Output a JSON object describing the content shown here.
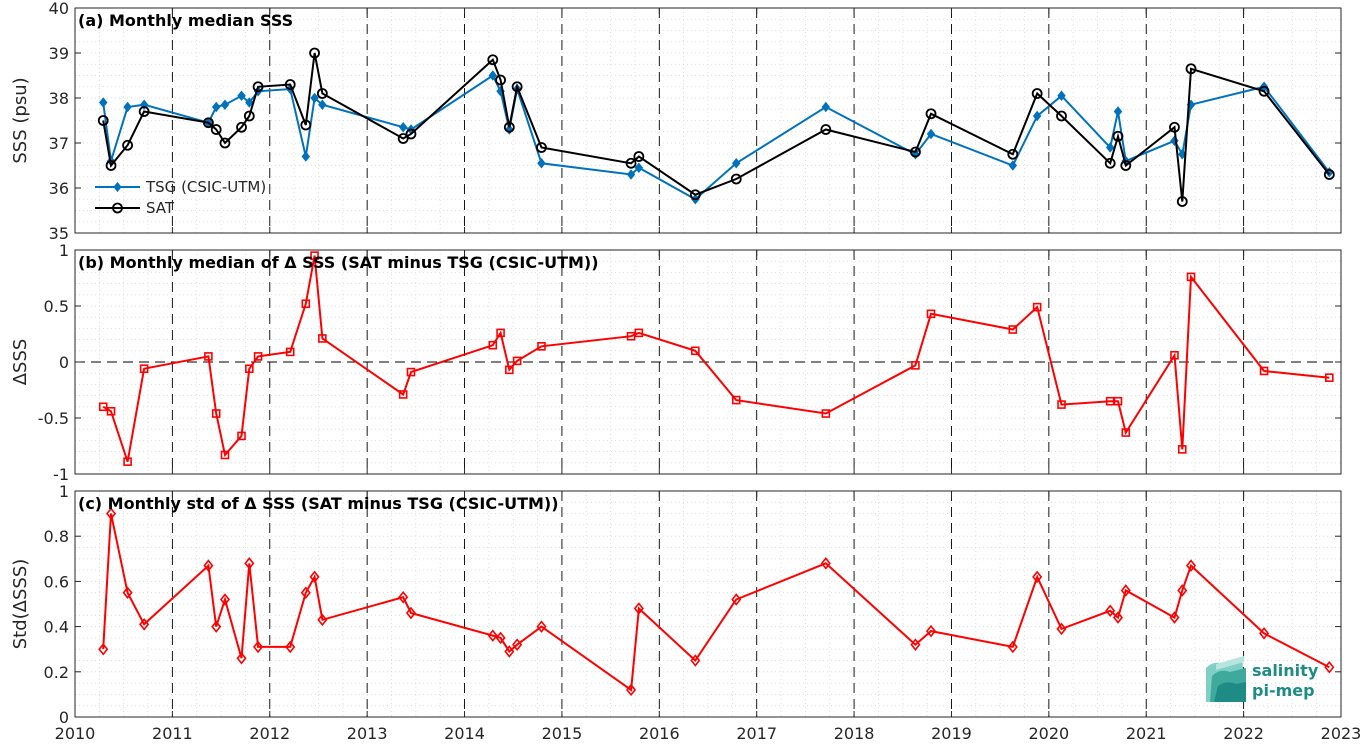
{
  "chart_data": [
    {
      "panel": "a",
      "type": "line",
      "title": "(a) Monthly median SSS",
      "ylabel": "SSS (psu)",
      "xlabel": "",
      "xlim": [
        2010,
        2023
      ],
      "ylim": [
        35,
        40
      ],
      "x_ticks": [
        "2010",
        "2011",
        "2012",
        "2013",
        "2014",
        "2015",
        "2016",
        "2017",
        "2018",
        "2019",
        "2020",
        "2021",
        "2022",
        "2023"
      ],
      "y_ticks": [
        "35",
        "36",
        "37",
        "38",
        "39",
        "40"
      ],
      "grid": "minor dotted + dashed yearly lines",
      "legend_position": "lower-left",
      "series": [
        {
          "name": "TSG (CSIC-UTM)",
          "color": "#0072bd",
          "marker": "diamond",
          "x": [
            2010.29,
            2010.37,
            2010.54,
            2010.71,
            2011.37,
            2011.45,
            2011.54,
            2011.71,
            2011.79,
            2011.88,
            2012.21,
            2012.37,
            2012.46,
            2012.54,
            2013.37,
            2013.45,
            2014.29,
            2014.37,
            2014.46,
            2014.54,
            2014.79,
            2015.71,
            2015.79,
            2016.37,
            2016.79,
            2017.71,
            2018.63,
            2018.79,
            2019.63,
            2019.88,
            2020.13,
            2020.63,
            2020.71,
            2020.79,
            2021.29,
            2021.37,
            2021.46,
            2022.21,
            2022.88
          ],
          "y": [
            37.9,
            36.6,
            37.8,
            37.85,
            37.45,
            37.8,
            37.85,
            38.05,
            37.9,
            38.15,
            38.2,
            36.7,
            38.0,
            37.85,
            37.35,
            37.3,
            38.5,
            38.15,
            37.3,
            38.2,
            36.55,
            36.3,
            36.45,
            35.75,
            36.55,
            37.8,
            36.75,
            37.2,
            36.5,
            37.6,
            38.05,
            36.9,
            37.7,
            36.6,
            37.05,
            36.75,
            37.85,
            38.25,
            36.35
          ]
        },
        {
          "name": "SAT",
          "color": "#000000",
          "marker": "circle",
          "x": [
            2010.29,
            2010.37,
            2010.54,
            2010.71,
            2011.37,
            2011.45,
            2011.54,
            2011.71,
            2011.79,
            2011.88,
            2012.21,
            2012.37,
            2012.46,
            2012.54,
            2013.37,
            2013.45,
            2014.29,
            2014.37,
            2014.46,
            2014.54,
            2014.79,
            2015.71,
            2015.79,
            2016.37,
            2016.79,
            2017.71,
            2018.63,
            2018.79,
            2019.63,
            2019.88,
            2020.13,
            2020.63,
            2020.71,
            2020.79,
            2021.29,
            2021.37,
            2021.46,
            2022.21,
            2022.88
          ],
          "y": [
            37.5,
            36.5,
            36.95,
            37.7,
            37.45,
            37.3,
            37.0,
            37.35,
            37.6,
            38.25,
            38.3,
            37.4,
            39.0,
            38.1,
            37.1,
            37.2,
            38.85,
            38.4,
            37.35,
            38.25,
            36.9,
            36.55,
            36.7,
            35.85,
            36.2,
            37.3,
            36.8,
            37.65,
            36.75,
            38.1,
            37.6,
            36.55,
            37.15,
            36.5,
            37.35,
            35.7,
            38.65,
            38.15,
            36.3
          ]
        }
      ]
    },
    {
      "panel": "b",
      "type": "line",
      "title": "(b) Monthly median of Δ SSS (SAT minus TSG (CSIC-UTM))",
      "ylabel": "ΔSSS",
      "xlabel": "",
      "xlim": [
        2010,
        2023
      ],
      "ylim": [
        -1,
        1
      ],
      "y_ticks": [
        "-1",
        "-0.5",
        "0",
        "0.5",
        "1"
      ],
      "reference_line": 0,
      "series": [
        {
          "color": "#ff0000",
          "marker": "square",
          "x": [
            2010.29,
            2010.37,
            2010.54,
            2010.71,
            2011.37,
            2011.45,
            2011.54,
            2011.71,
            2011.79,
            2011.88,
            2012.21,
            2012.37,
            2012.46,
            2012.54,
            2013.37,
            2013.45,
            2014.29,
            2014.37,
            2014.46,
            2014.54,
            2014.79,
            2015.71,
            2015.79,
            2016.37,
            2016.79,
            2017.71,
            2018.63,
            2018.79,
            2019.63,
            2019.88,
            2020.13,
            2020.63,
            2020.71,
            2020.79,
            2021.29,
            2021.37,
            2021.46,
            2022.21,
            2022.88
          ],
          "y": [
            -0.4,
            -0.44,
            -0.89,
            -0.06,
            0.05,
            -0.46,
            -0.83,
            -0.66,
            -0.06,
            0.05,
            0.09,
            0.52,
            0.95,
            0.21,
            -0.29,
            -0.09,
            0.15,
            0.26,
            -0.07,
            0.01,
            0.14,
            0.23,
            0.26,
            0.1,
            -0.34,
            -0.46,
            -0.03,
            0.43,
            0.29,
            0.49,
            -0.38,
            -0.35,
            -0.35,
            -0.63,
            0.06,
            -0.78,
            0.76,
            -0.08,
            -0.14
          ]
        }
      ]
    },
    {
      "panel": "c",
      "type": "line",
      "title": "(c) Monthly std of Δ SSS (SAT minus TSG (CSIC-UTM))",
      "ylabel": "Std(ΔSSS)",
      "xlabel": "",
      "xlim": [
        2010,
        2023
      ],
      "ylim": [
        0,
        1
      ],
      "y_ticks": [
        "0",
        "0.2",
        "0.4",
        "0.6",
        "0.8",
        "1"
      ],
      "series": [
        {
          "color": "#ff0000",
          "marker": "diamond",
          "x": [
            2010.29,
            2010.37,
            2010.54,
            2010.71,
            2011.37,
            2011.45,
            2011.54,
            2011.71,
            2011.79,
            2011.88,
            2012.21,
            2012.37,
            2012.46,
            2012.54,
            2013.37,
            2013.45,
            2014.29,
            2014.37,
            2014.46,
            2014.54,
            2014.79,
            2015.71,
            2015.79,
            2016.37,
            2016.79,
            2017.71,
            2018.63,
            2018.79,
            2019.63,
            2019.88,
            2020.13,
            2020.63,
            2020.71,
            2020.79,
            2021.29,
            2021.37,
            2021.46,
            2022.21,
            2022.88
          ],
          "y": [
            0.3,
            0.9,
            0.55,
            0.41,
            0.67,
            0.4,
            0.52,
            0.26,
            0.68,
            0.31,
            0.31,
            0.55,
            0.62,
            0.43,
            0.53,
            0.46,
            0.36,
            0.35,
            0.29,
            0.32,
            0.4,
            0.12,
            0.48,
            0.25,
            0.52,
            0.68,
            0.32,
            0.38,
            0.31,
            0.62,
            0.39,
            0.47,
            0.44,
            0.56,
            0.44,
            0.56,
            0.67,
            0.37,
            0.22
          ]
        }
      ]
    }
  ],
  "logo": {
    "line1": "salinity",
    "line2": "pi-mep",
    "color": "#1e8c84"
  }
}
